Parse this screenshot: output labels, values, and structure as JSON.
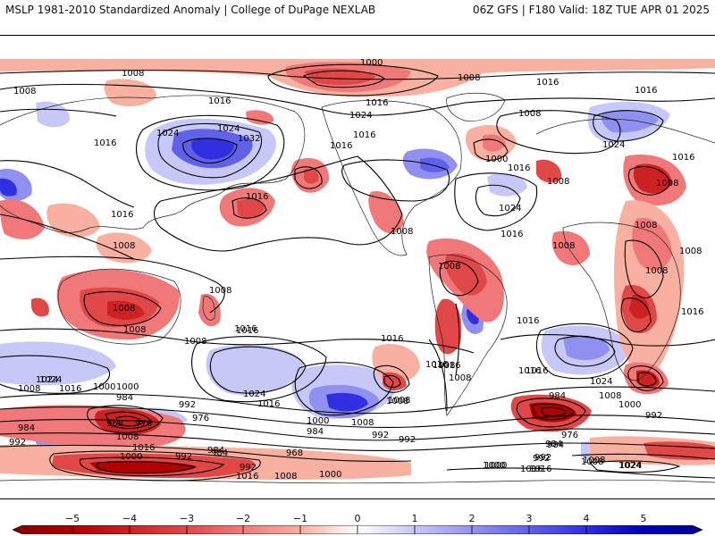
{
  "header": {
    "left_title": "MSLP 1981-2010 Standardized Anomaly | College of DuPage NEXLAB",
    "right_title": "06Z GFS | F180 Valid: 18Z TUE APR 01 2025"
  },
  "colors": {
    "neg5": "#b00000",
    "neg4": "#cc2222",
    "neg3": "#e04848",
    "neg2": "#f07878",
    "neg1": "#f8b0a0",
    "zero": "#ffffff",
    "pos1": "#c8c8f8",
    "pos2": "#9090f0",
    "pos3": "#6060e8",
    "pos4": "#3030e0",
    "pos5": "#0000c0"
  },
  "colorbar": {
    "ticks": [
      "−5",
      "−4",
      "−3",
      "−2",
      "−1",
      "0",
      "1",
      "2",
      "3",
      "4",
      "5"
    ]
  },
  "contour_labels": [
    {
      "id": "c1000-n",
      "text": "1000"
    },
    {
      "id": "c1008-nw",
      "text": "1008"
    },
    {
      "id": "c1008-w",
      "text": "1008"
    },
    {
      "id": "c1016-w1",
      "text": "1016"
    },
    {
      "id": "c1016-w2",
      "text": "1016"
    },
    {
      "id": "c1016-nc",
      "text": "1016"
    },
    {
      "id": "c1024-nc",
      "text": "1024"
    },
    {
      "id": "c1008-ne",
      "text": "1008"
    },
    {
      "id": "c1016-ne1",
      "text": "1016"
    },
    {
      "id": "c1016-ne2",
      "text": "1016"
    },
    {
      "id": "c1024-asia",
      "text": "1024"
    },
    {
      "id": "c1024-asia2",
      "text": "1024"
    },
    {
      "id": "c1032",
      "text": "1032"
    },
    {
      "id": "c1016-pac",
      "text": "1016"
    },
    {
      "id": "c1016-pac2",
      "text": "1016"
    },
    {
      "id": "c1016-usa",
      "text": "1016"
    },
    {
      "id": "c1016-usa2",
      "text": "1016"
    },
    {
      "id": "c1008-car",
      "text": "1008"
    },
    {
      "id": "c1000-atl",
      "text": "1000"
    },
    {
      "id": "c1016-atl",
      "text": "1016"
    },
    {
      "id": "c1024-atl",
      "text": "1024"
    },
    {
      "id": "c1016-atl2",
      "text": "1016"
    },
    {
      "id": "c1008-eu",
      "text": "1008"
    },
    {
      "id": "c1008-med",
      "text": "1008"
    },
    {
      "id": "c1024-eu",
      "text": "1024"
    },
    {
      "id": "c1008-ru",
      "text": "1008"
    },
    {
      "id": "c1016-ru",
      "text": "1016"
    },
    {
      "id": "c1008-me",
      "text": "1008"
    },
    {
      "id": "c1008-af",
      "text": "1008"
    },
    {
      "id": "c1008-af2",
      "text": "1008"
    },
    {
      "id": "c1016-safr",
      "text": "1016"
    },
    {
      "id": "c1016-ind",
      "text": "1016"
    },
    {
      "id": "c1008-sam",
      "text": "1008"
    },
    {
      "id": "c1016-sam",
      "text": "1016"
    },
    {
      "id": "c1016-sam2",
      "text": "1016"
    },
    {
      "id": "c1008-sea",
      "text": "1008"
    },
    {
      "id": "c1008-aus",
      "text": "1008"
    },
    {
      "id": "c1008-aus2",
      "text": "1008"
    },
    {
      "id": "c1008-aus3",
      "text": "1008"
    },
    {
      "id": "c1008-nz",
      "text": "1008"
    },
    {
      "id": "c1016-tas",
      "text": "1016"
    },
    {
      "id": "c1024-sio",
      "text": "1024"
    },
    {
      "id": "c1008-sio",
      "text": "1008"
    },
    {
      "id": "c1016-sio",
      "text": "1016"
    },
    {
      "id": "c1000-so",
      "text": "1000"
    },
    {
      "id": "c984-so1",
      "text": "984"
    },
    {
      "id": "c992-so1",
      "text": "992"
    },
    {
      "id": "c968-so",
      "text": "968"
    },
    {
      "id": "c976-so",
      "text": "976"
    },
    {
      "id": "c976-so2",
      "text": "976"
    },
    {
      "id": "c984-so2",
      "text": "984"
    },
    {
      "id": "c992-so2",
      "text": "992"
    },
    {
      "id": "c1008-so2",
      "text": "1008"
    },
    {
      "id": "c1016-so2",
      "text": "1016"
    },
    {
      "id": "c1000-so3",
      "text": "1000"
    },
    {
      "id": "c992-so3",
      "text": "992"
    },
    {
      "id": "c984-so4",
      "text": "984"
    },
    {
      "id": "c968-so4",
      "text": "968"
    },
    {
      "id": "c992-so5",
      "text": "992"
    },
    {
      "id": "c1016-so6",
      "text": "1016"
    },
    {
      "id": "c1008-so6",
      "text": "1008"
    },
    {
      "id": "c1000-so6",
      "text": "1000"
    },
    {
      "id": "c1024-sp",
      "text": "1024"
    },
    {
      "id": "c1016-sp",
      "text": "1016"
    },
    {
      "id": "c1000-sp",
      "text": "1000"
    },
    {
      "id": "c1008-sp",
      "text": "1008"
    },
    {
      "id": "c984-sp",
      "text": "984"
    },
    {
      "id": "c992-sp",
      "text": "992"
    },
    {
      "id": "c992-sp2",
      "text": "992"
    },
    {
      "id": "c1016-sp2",
      "text": "1016"
    },
    {
      "id": "c1008-sp3",
      "text": "1008"
    },
    {
      "id": "c1016-sa",
      "text": "1016"
    },
    {
      "id": "c1008-sa",
      "text": "1008"
    },
    {
      "id": "c984-sa",
      "text": "984"
    },
    {
      "id": "c976-sa",
      "text": "976"
    },
    {
      "id": "c984-sa2",
      "text": "984"
    },
    {
      "id": "c992-sa",
      "text": "992"
    },
    {
      "id": "c1000-sa",
      "text": "1000"
    },
    {
      "id": "c1016-sa2",
      "text": "1016"
    },
    {
      "id": "c1008-sa2",
      "text": "1008"
    },
    {
      "id": "c1024-sa",
      "text": "1024"
    },
    {
      "id": "c1000-sa2",
      "text": "1000"
    },
    {
      "id": "c1008-sa3",
      "text": "1008"
    },
    {
      "id": "c992-sa2",
      "text": "992"
    },
    {
      "id": "c984-sio2",
      "text": "984"
    },
    {
      "id": "c1000-sio2",
      "text": "1000"
    },
    {
      "id": "c1008-sio3",
      "text": "1008"
    },
    {
      "id": "c1024-sio3",
      "text": "1024"
    },
    {
      "id": "c1016-sio3",
      "text": "1016"
    },
    {
      "id": "c1008-sio4",
      "text": "1008"
    },
    {
      "id": "c1000-far",
      "text": "1000"
    },
    {
      "id": "c992-far",
      "text": "992"
    },
    {
      "id": "c984-far",
      "text": "984"
    },
    {
      "id": "c1016-far",
      "text": "1016"
    },
    {
      "id": "c1024-far",
      "text": "1024"
    },
    {
      "id": "c1008-far",
      "text": "1008"
    },
    {
      "id": "c1016-ind2",
      "text": "1016"
    },
    {
      "id": "c1024-ind2",
      "text": "1024"
    },
    {
      "id": "c1008-ind2",
      "text": "1008"
    }
  ]
}
